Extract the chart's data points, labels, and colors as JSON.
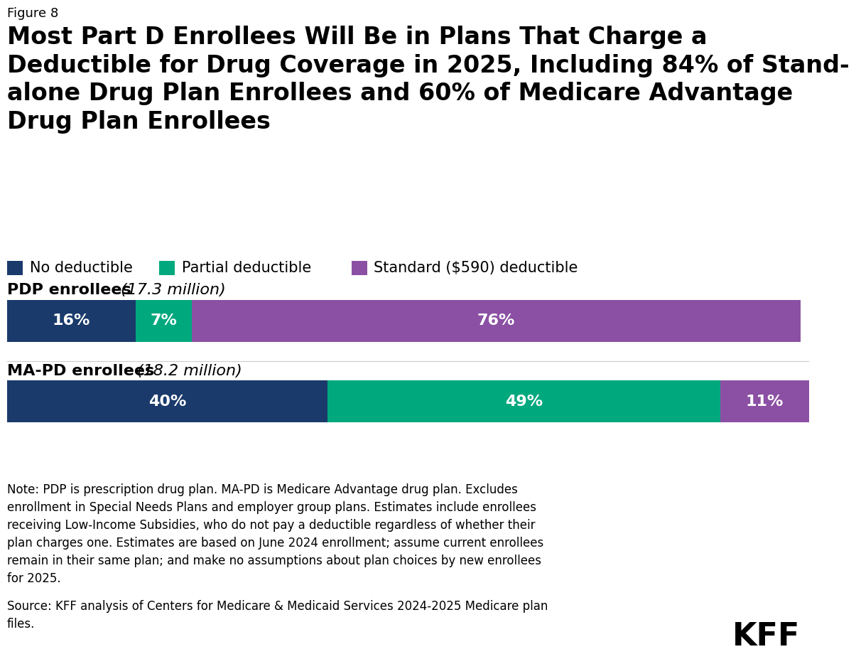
{
  "figure_label": "Figure 8",
  "title_lines": [
    "Most Part D Enrollees Will Be in Plans That Charge a",
    "Deductible for Drug Coverage in 2025, Including 84% of Stand-",
    "alone Drug Plan Enrollees and 60% of Medicare Advantage",
    "Drug Plan Enrollees"
  ],
  "legend_items": [
    {
      "label": "No deductible",
      "color": "#1a3a6b"
    },
    {
      "label": "Partial deductible",
      "color": "#00a87e"
    },
    {
      "label": "Standard ($590) deductible",
      "color": "#8b50a4"
    }
  ],
  "groups": [
    {
      "label": "PDP enrollees",
      "sublabel": "(17.3 million)",
      "segments": [
        {
          "value": 16,
          "color": "#1a3a6b",
          "text": "16%"
        },
        {
          "value": 7,
          "color": "#00a87e",
          "text": "7%"
        },
        {
          "value": 76,
          "color": "#8b50a4",
          "text": "76%"
        }
      ]
    },
    {
      "label": "MA-PD enrollees",
      "sublabel": "(18.2 million)",
      "segments": [
        {
          "value": 40,
          "color": "#1a3a6b",
          "text": "40%"
        },
        {
          "value": 49,
          "color": "#00a87e",
          "text": "49%"
        },
        {
          "value": 11,
          "color": "#8b50a4",
          "text": "11%"
        }
      ]
    }
  ],
  "note_text": "Note: PDP is prescription drug plan. MA-PD is Medicare Advantage drug plan. Excludes\nenrollment in Special Needs Plans and employer group plans. Estimates include enrollees\nreceiving Low-Income Subsidies, who do not pay a deductible regardless of whether their\nplan charges one. Estimates are based on June 2024 enrollment; assume current enrollees\nremain in their same plan; and make no assumptions about plan choices by new enrollees\nfor 2025.",
  "source_text": "Source: KFF analysis of Centers for Medicare & Medicaid Services 2024-2025 Medicare plan\nfiles.",
  "background_color": "#ffffff",
  "text_color_on_bar": "#ffffff",
  "bar_label_fontsize": 16,
  "group_label_fontsize": 16,
  "sublabel_fontsize": 16,
  "title_fontsize": 24,
  "figure_label_fontsize": 13,
  "legend_fontsize": 15,
  "note_fontsize": 12,
  "kff_fontsize": 32
}
